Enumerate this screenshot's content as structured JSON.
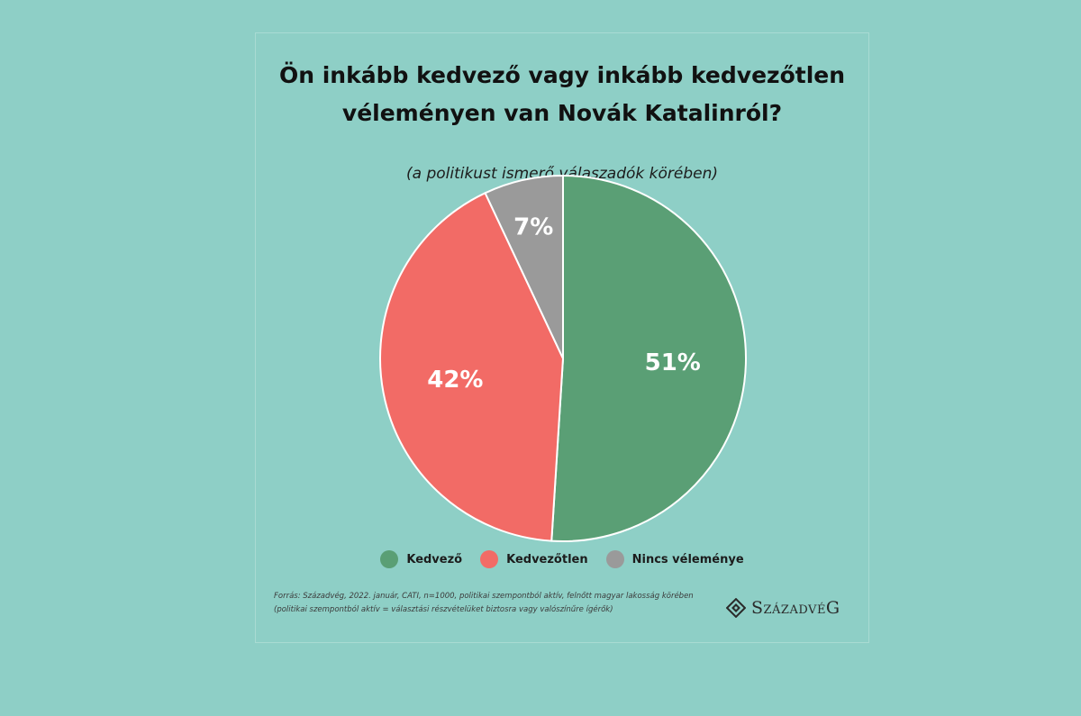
{
  "chart_data": {
    "type": "pie",
    "title_line1": "Ön inkább kedvező vagy inkább kedvezőtlen",
    "title_line2": "véleményen van Novák Katalinról?",
    "subtitle": "(a politikust ismerő válaszadók körében)",
    "slices": [
      {
        "label": "Kedvező",
        "value": 51,
        "value_label": "51%",
        "color": "#5a9f75"
      },
      {
        "label": "Kedvezőtlen",
        "value": 42,
        "value_label": "42%",
        "color": "#f26b66"
      },
      {
        "label": "Nincs véleménye",
        "value": 7,
        "value_label": "7%",
        "color": "#9a9a9a"
      }
    ],
    "legend_position": "bottom"
  },
  "footer": {
    "source_line1": "Forrás: Századvég, 2022. január, CATI, n=1000, politikai szempontból aktív, felnőtt magyar lakosság körében",
    "source_line2": "(politikai szempontból aktív = választási részvételüket biztosra vagy valószínűre ígérők)",
    "logo_text": "SzázadvéG"
  },
  "colors": {
    "background": "#8ecfc6",
    "label_text": "#ffffff"
  }
}
